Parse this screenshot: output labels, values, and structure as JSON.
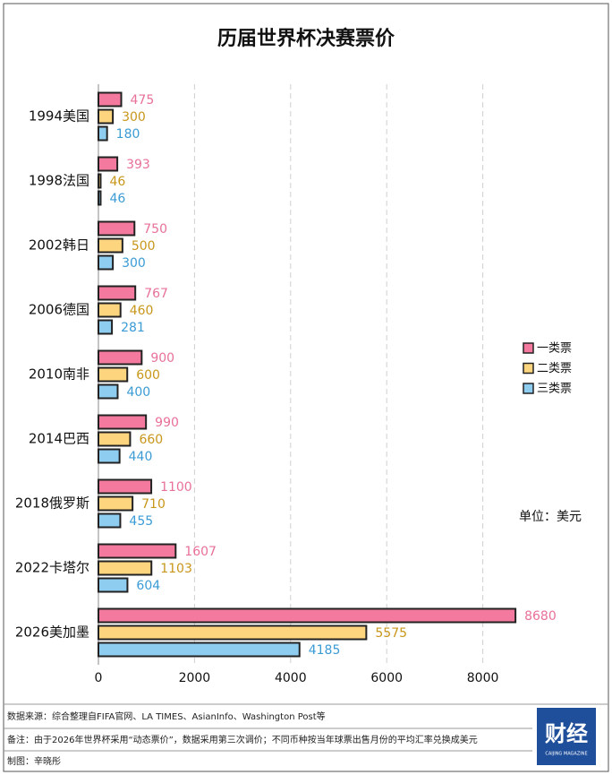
{
  "chart_data": {
    "type": "bar",
    "orientation": "horizontal",
    "title": "历届世界杯决赛票价",
    "categories": [
      "1994美国",
      "1998法国",
      "2002韩日",
      "2006德国",
      "2010南非",
      "2014巴西",
      "2018俄罗斯",
      "2022卡塔尔",
      "2026美加墨"
    ],
    "series": [
      {
        "name": "一类票",
        "color": "#f4799e",
        "label_color": "#e8709a",
        "values": [
          475,
          393,
          750,
          767,
          900,
          990,
          1100,
          1607,
          8680
        ]
      },
      {
        "name": "二类票",
        "color": "#fdd57e",
        "label_color": "#c8961a",
        "values": [
          300,
          46,
          500,
          460,
          600,
          660,
          710,
          1103,
          5575
        ]
      },
      {
        "name": "三类票",
        "color": "#8ecdf0",
        "label_color": "#3a9bd5",
        "values": [
          180,
          46,
          300,
          281,
          400,
          440,
          455,
          604,
          4185
        ]
      }
    ],
    "xlim": [
      0,
      10000
    ],
    "xticks": [
      0,
      2000,
      4000,
      6000,
      8000
    ],
    "grid": true,
    "legend": "right",
    "unit_note": "单位：美元"
  },
  "footer": {
    "source": "数据来源：综合整理自FIFA官网、LA TIMES、AsianInfo、Washington Post等",
    "note": "备注：由于2026年世界杯采用“动态票价”，数据采用第三次调价；不同币种按当年球票出售月份的平均汇率兑换成美元",
    "credit": "制图：辛晓彤"
  },
  "logo": {
    "text": "财经",
    "subtitle": "CAIJING MAGAZINE"
  }
}
